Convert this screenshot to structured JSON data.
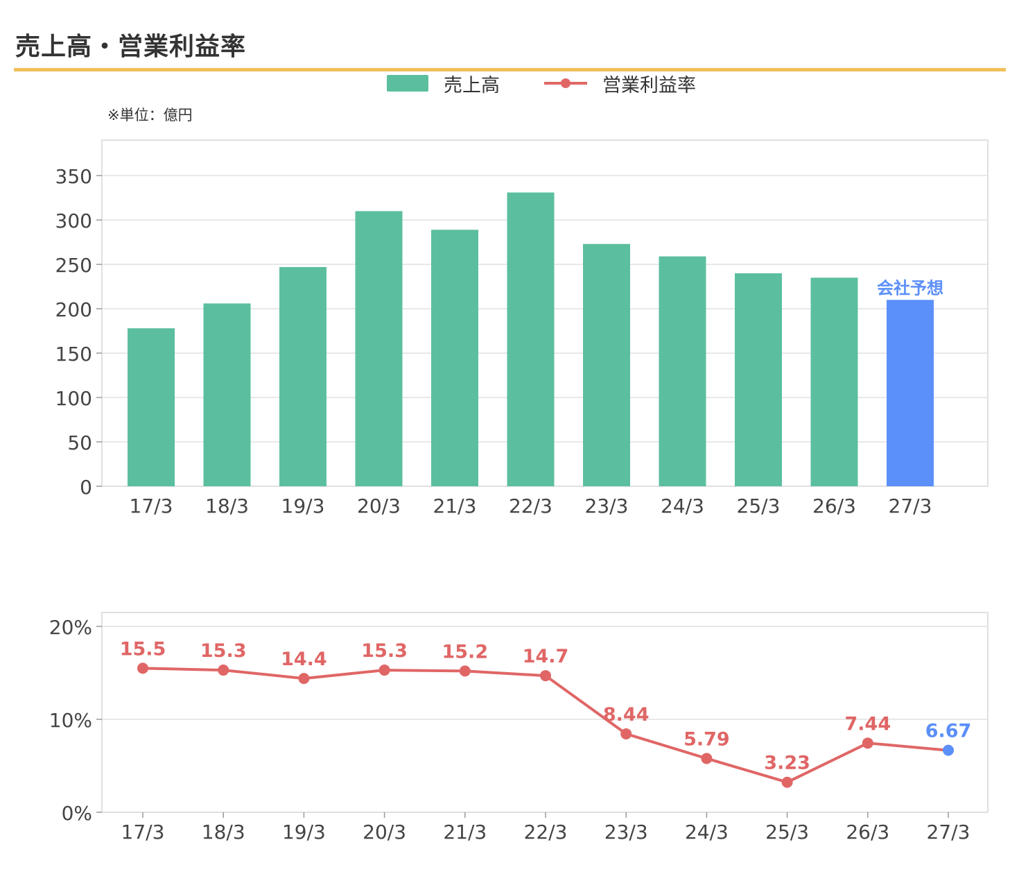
{
  "title": "売上高・営業利益率",
  "unit_note": "※単位：億円",
  "colors": {
    "sales_bar": "#5bbf9f",
    "forecast": "#5b8ff9",
    "margin_line": "#e06666",
    "title_rule": "#f0c05a",
    "grid": "#e0e0e0"
  },
  "legend": [
    {
      "label": "売上高",
      "marker": "bar"
    },
    {
      "label": "営業利益率",
      "marker": "line-dot"
    }
  ],
  "chart_data": [
    {
      "type": "bar",
      "categories": [
        "17/3",
        "18/3",
        "19/3",
        "20/3",
        "21/3",
        "22/3",
        "23/3",
        "24/3",
        "25/3",
        "26/3",
        "27/3"
      ],
      "series": [
        {
          "name": "売上高",
          "values": [
            178,
            206,
            247,
            310,
            289,
            331,
            273,
            259,
            240,
            235,
            210
          ]
        }
      ],
      "forecast_index": 10,
      "forecast_label": "会社予想",
      "yticks": [
        0,
        50,
        100,
        150,
        200,
        250,
        300,
        350
      ],
      "ylim": [
        0,
        390
      ],
      "grid": true
    },
    {
      "type": "line",
      "categories": [
        "17/3",
        "18/3",
        "19/3",
        "20/3",
        "21/3",
        "22/3",
        "23/3",
        "24/3",
        "25/3",
        "26/3",
        "27/3"
      ],
      "series": [
        {
          "name": "営業利益率",
          "values": [
            15.5,
            15.3,
            14.4,
            15.3,
            15.2,
            14.7,
            8.44,
            5.79,
            3.23,
            7.44,
            6.67
          ]
        }
      ],
      "data_labels": [
        "15.5",
        "15.3",
        "14.4",
        "15.3",
        "15.2",
        "14.7",
        "8.44",
        "5.79",
        "3.23",
        "7.44",
        "6.67"
      ],
      "forecast_index": 10,
      "yticks": [
        "0%",
        "10%",
        "20%"
      ],
      "ytick_values": [
        0,
        10,
        20
      ],
      "ylim": [
        0,
        21.5
      ],
      "grid": true
    }
  ]
}
